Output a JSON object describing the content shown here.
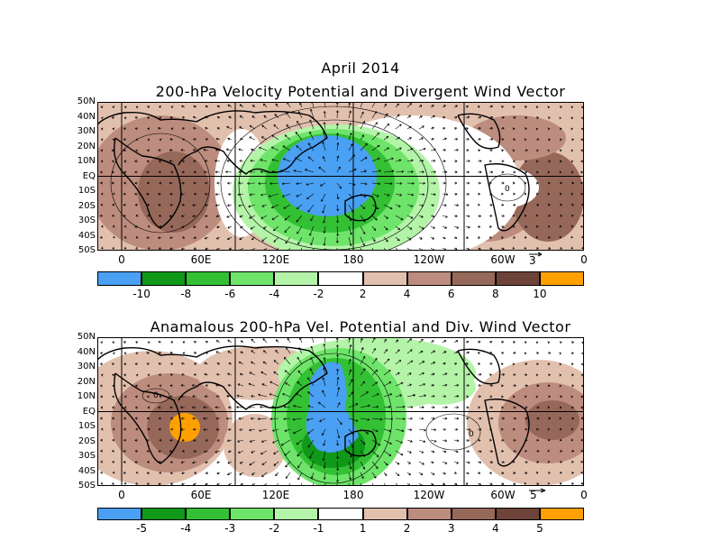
{
  "figure": {
    "title_line1": "April 2014",
    "panel1_title": "200-hPa Velocity Potential and Divergent Wind Vector",
    "panel2_title": "Anamalous 200-hPa Vel. Potential and Div. Wind Vector"
  },
  "axes": {
    "lat_labels": [
      "50N",
      "40N",
      "30N",
      "20N",
      "10N",
      "EQ",
      "10S",
      "20S",
      "30S",
      "40S",
      "50S"
    ],
    "lon_labels": [
      "0",
      "60E",
      "120E",
      "180",
      "120W",
      "60W",
      "0"
    ]
  },
  "panel1": {
    "ref_vector_label": "3",
    "contour_label": "0",
    "colorbar_labels": [
      "-10",
      "-8",
      "-6",
      "-4",
      "-2",
      "2",
      "4",
      "6",
      "8",
      "10"
    ]
  },
  "panel2": {
    "ref_vector_label": "5",
    "contour_labels": [
      "0",
      "0"
    ],
    "colorbar_labels": [
      "-5",
      "-4",
      "-3",
      "-2",
      "-1",
      "1",
      "2",
      "3",
      "4",
      "5"
    ]
  },
  "colors": {
    "bins": [
      "#4aa0f2",
      "#109818",
      "#34c034",
      "#6ee46a",
      "#b4f4a8",
      "#ffffff",
      "#e2c0ae",
      "#bc8c7e",
      "#96685a",
      "#6e443a",
      "#ffa000"
    ],
    "land_outline": "#000000"
  }
}
